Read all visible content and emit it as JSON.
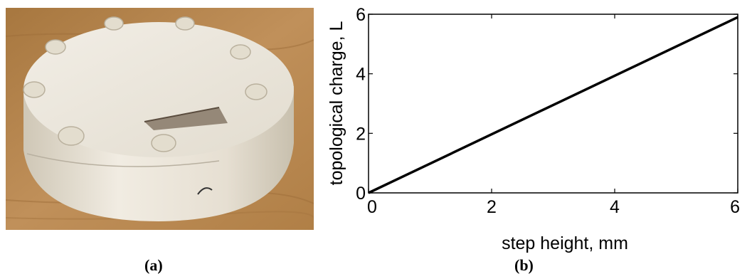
{
  "panels": {
    "a": {
      "caption": "(a)"
    },
    "b": {
      "caption": "(b)"
    }
  },
  "colors": {
    "line": "#000000",
    "wood": "#b6864f",
    "disc": "#ece7dc"
  },
  "chart_data": {
    "type": "line",
    "title": "",
    "xlabel": "step height, mm",
    "ylabel": "topological charge, L",
    "xlim": [
      0,
      6
    ],
    "ylim": [
      0,
      6
    ],
    "xticks": [
      "0",
      "2",
      "4",
      "6"
    ],
    "yticks": [
      "0",
      "2",
      "4",
      "6"
    ],
    "grid": false,
    "series": [
      {
        "x": [
          0,
          6
        ],
        "y": [
          0,
          5.9
        ]
      }
    ]
  }
}
